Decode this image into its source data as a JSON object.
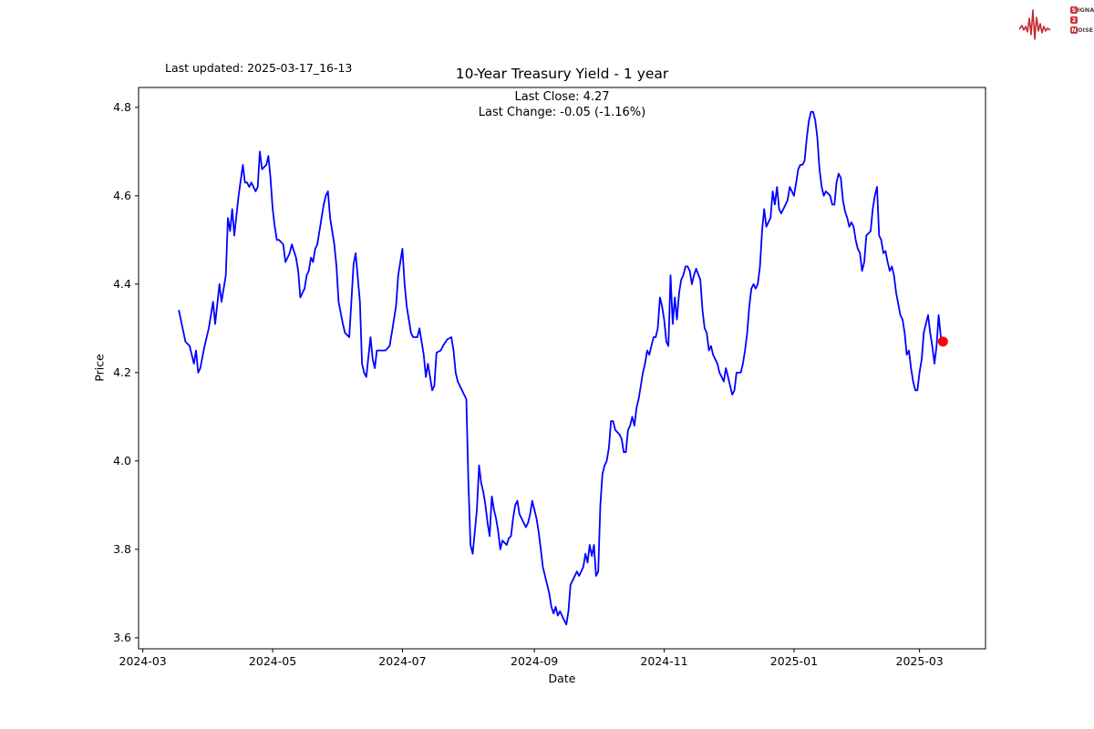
{
  "header": {
    "last_updated": "Last updated: 2025-03-17_16-13",
    "title": "10-Year Treasury Yield - 1 year",
    "subtitle_close": "Last Close: 4.27",
    "subtitle_change": "Last Change: -0.05 (-1.16%)"
  },
  "logo": {
    "badge_letters": [
      "S",
      "2",
      "N"
    ],
    "rest_letters": [
      "IGNAL",
      "",
      "OISE"
    ],
    "badge_color": "#cd3238",
    "wave_color": "#c32a30"
  },
  "chart_data": {
    "type": "line",
    "title": "10-Year Treasury Yield - 1 year",
    "xlabel": "Date",
    "ylabel": "Price",
    "grid": false,
    "legend_position": "none",
    "line_color": "#0000ff",
    "marker_color": "#ff0000",
    "ylim": [
      3.575,
      4.845
    ],
    "xlim": [
      "2024-02-28",
      "2025-04-01"
    ],
    "y_ticks": [
      3.6,
      3.8,
      4.0,
      4.2,
      4.4,
      4.6,
      4.8
    ],
    "x_ticks": [
      {
        "label": "2024-03",
        "date": "2024-03-01"
      },
      {
        "label": "2024-05",
        "date": "2024-05-01"
      },
      {
        "label": "2024-07",
        "date": "2024-07-01"
      },
      {
        "label": "2024-09",
        "date": "2024-09-01"
      },
      {
        "label": "2024-11",
        "date": "2024-11-01"
      },
      {
        "label": "2025-01",
        "date": "2025-01-01"
      },
      {
        "label": "2025-03",
        "date": "2025-03-01"
      }
    ],
    "last_close": 4.27,
    "last_change": -0.05,
    "last_change_pct": -1.16,
    "points": [
      [
        "2024-03-18",
        4.34
      ],
      [
        "2024-03-21",
        4.27
      ],
      [
        "2024-03-23",
        4.26
      ],
      [
        "2024-03-25",
        4.22
      ],
      [
        "2024-03-26",
        4.25
      ],
      [
        "2024-03-27",
        4.2
      ],
      [
        "2024-03-28",
        4.21
      ],
      [
        "2024-03-30",
        4.26
      ],
      [
        "2024-04-01",
        4.3
      ],
      [
        "2024-04-03",
        4.36
      ],
      [
        "2024-04-04",
        4.31
      ],
      [
        "2024-04-06",
        4.4
      ],
      [
        "2024-04-07",
        4.36
      ],
      [
        "2024-04-09",
        4.42
      ],
      [
        "2024-04-10",
        4.55
      ],
      [
        "2024-04-11",
        4.52
      ],
      [
        "2024-04-12",
        4.57
      ],
      [
        "2024-04-13",
        4.51
      ],
      [
        "2024-04-15",
        4.6
      ],
      [
        "2024-04-17",
        4.67
      ],
      [
        "2024-04-18",
        4.63
      ],
      [
        "2024-04-19",
        4.63
      ],
      [
        "2024-04-20",
        4.62
      ],
      [
        "2024-04-21",
        4.63
      ],
      [
        "2024-04-23",
        4.61
      ],
      [
        "2024-04-24",
        4.62
      ],
      [
        "2024-04-25",
        4.7
      ],
      [
        "2024-04-26",
        4.66
      ],
      [
        "2024-04-28",
        4.67
      ],
      [
        "2024-04-29",
        4.69
      ],
      [
        "2024-04-30",
        4.64
      ],
      [
        "2024-05-01",
        4.57
      ],
      [
        "2024-05-02",
        4.53
      ],
      [
        "2024-05-03",
        4.5
      ],
      [
        "2024-05-04",
        4.5
      ],
      [
        "2024-05-06",
        4.49
      ],
      [
        "2024-05-07",
        4.45
      ],
      [
        "2024-05-09",
        4.47
      ],
      [
        "2024-05-10",
        4.49
      ],
      [
        "2024-05-11",
        4.475
      ],
      [
        "2024-05-12",
        4.46
      ],
      [
        "2024-05-13",
        4.43
      ],
      [
        "2024-05-14",
        4.37
      ],
      [
        "2024-05-15",
        4.38
      ],
      [
        "2024-05-16",
        4.39
      ],
      [
        "2024-05-17",
        4.42
      ],
      [
        "2024-05-18",
        4.43
      ],
      [
        "2024-05-19",
        4.46
      ],
      [
        "2024-05-20",
        4.45
      ],
      [
        "2024-05-21",
        4.48
      ],
      [
        "2024-05-22",
        4.49
      ],
      [
        "2024-05-23",
        4.52
      ],
      [
        "2024-05-24",
        4.55
      ],
      [
        "2024-05-25",
        4.58
      ],
      [
        "2024-05-26",
        4.6
      ],
      [
        "2024-05-27",
        4.61
      ],
      [
        "2024-05-28",
        4.55
      ],
      [
        "2024-05-30",
        4.49
      ],
      [
        "2024-05-31",
        4.44
      ],
      [
        "2024-06-01",
        4.36
      ],
      [
        "2024-06-03",
        4.31
      ],
      [
        "2024-06-04",
        4.29
      ],
      [
        "2024-06-06",
        4.28
      ],
      [
        "2024-06-07",
        4.36
      ],
      [
        "2024-06-08",
        4.445
      ],
      [
        "2024-06-09",
        4.47
      ],
      [
        "2024-06-11",
        4.36
      ],
      [
        "2024-06-12",
        4.22
      ],
      [
        "2024-06-13",
        4.2
      ],
      [
        "2024-06-14",
        4.19
      ],
      [
        "2024-06-16",
        4.28
      ],
      [
        "2024-06-17",
        4.23
      ],
      [
        "2024-06-18",
        4.21
      ],
      [
        "2024-06-19",
        4.25
      ],
      [
        "2024-06-21",
        4.25
      ],
      [
        "2024-06-23",
        4.25
      ],
      [
        "2024-06-25",
        4.26
      ],
      [
        "2024-06-26",
        4.29
      ],
      [
        "2024-06-27",
        4.32
      ],
      [
        "2024-06-28",
        4.35
      ],
      [
        "2024-06-29",
        4.42
      ],
      [
        "2024-07-01",
        4.48
      ],
      [
        "2024-07-02",
        4.4
      ],
      [
        "2024-07-03",
        4.35
      ],
      [
        "2024-07-05",
        4.29
      ],
      [
        "2024-07-06",
        4.28
      ],
      [
        "2024-07-08",
        4.28
      ],
      [
        "2024-07-09",
        4.3
      ],
      [
        "2024-07-11",
        4.24
      ],
      [
        "2024-07-12",
        4.19
      ],
      [
        "2024-07-13",
        4.22
      ],
      [
        "2024-07-15",
        4.16
      ],
      [
        "2024-07-16",
        4.17
      ],
      [
        "2024-07-17",
        4.245
      ],
      [
        "2024-07-19",
        4.25
      ],
      [
        "2024-07-20",
        4.26
      ],
      [
        "2024-07-22",
        4.275
      ],
      [
        "2024-07-24",
        4.28
      ],
      [
        "2024-07-25",
        4.25
      ],
      [
        "2024-07-26",
        4.2
      ],
      [
        "2024-07-27",
        4.18
      ],
      [
        "2024-07-29",
        4.16
      ],
      [
        "2024-07-30",
        4.15
      ],
      [
        "2024-07-31",
        4.14
      ],
      [
        "2024-08-01",
        3.95
      ],
      [
        "2024-08-02",
        3.81
      ],
      [
        "2024-08-03",
        3.79
      ],
      [
        "2024-08-05",
        3.89
      ],
      [
        "2024-08-06",
        3.99
      ],
      [
        "2024-08-07",
        3.95
      ],
      [
        "2024-08-08",
        3.93
      ],
      [
        "2024-08-09",
        3.9
      ],
      [
        "2024-08-10",
        3.86
      ],
      [
        "2024-08-11",
        3.83
      ],
      [
        "2024-08-12",
        3.92
      ],
      [
        "2024-08-13",
        3.89
      ],
      [
        "2024-08-14",
        3.87
      ],
      [
        "2024-08-15",
        3.84
      ],
      [
        "2024-08-16",
        3.8
      ],
      [
        "2024-08-17",
        3.82
      ],
      [
        "2024-08-19",
        3.81
      ],
      [
        "2024-08-20",
        3.825
      ],
      [
        "2024-08-21",
        3.83
      ],
      [
        "2024-08-22",
        3.87
      ],
      [
        "2024-08-23",
        3.9
      ],
      [
        "2024-08-24",
        3.91
      ],
      [
        "2024-08-25",
        3.88
      ],
      [
        "2024-08-27",
        3.86
      ],
      [
        "2024-08-28",
        3.85
      ],
      [
        "2024-08-29",
        3.86
      ],
      [
        "2024-08-30",
        3.88
      ],
      [
        "2024-08-31",
        3.91
      ],
      [
        "2024-09-02",
        3.87
      ],
      [
        "2024-09-03",
        3.84
      ],
      [
        "2024-09-04",
        3.8
      ],
      [
        "2024-09-05",
        3.76
      ],
      [
        "2024-09-07",
        3.72
      ],
      [
        "2024-09-08",
        3.7
      ],
      [
        "2024-09-09",
        3.67
      ],
      [
        "2024-09-10",
        3.655
      ],
      [
        "2024-09-11",
        3.67
      ],
      [
        "2024-09-12",
        3.65
      ],
      [
        "2024-09-13",
        3.66
      ],
      [
        "2024-09-14",
        3.65
      ],
      [
        "2024-09-15",
        3.64
      ],
      [
        "2024-09-16",
        3.63
      ],
      [
        "2024-09-17",
        3.66
      ],
      [
        "2024-09-18",
        3.72
      ],
      [
        "2024-09-19",
        3.73
      ],
      [
        "2024-09-21",
        3.75
      ],
      [
        "2024-09-22",
        3.74
      ],
      [
        "2024-09-23",
        3.75
      ],
      [
        "2024-09-24",
        3.76
      ],
      [
        "2024-09-25",
        3.79
      ],
      [
        "2024-09-26",
        3.77
      ],
      [
        "2024-09-27",
        3.81
      ],
      [
        "2024-09-28",
        3.785
      ],
      [
        "2024-09-29",
        3.81
      ],
      [
        "2024-09-30",
        3.74
      ],
      [
        "2024-10-01",
        3.75
      ],
      [
        "2024-10-02",
        3.9
      ],
      [
        "2024-10-03",
        3.97
      ],
      [
        "2024-10-04",
        3.99
      ],
      [
        "2024-10-05",
        4.0
      ],
      [
        "2024-10-06",
        4.03
      ],
      [
        "2024-10-07",
        4.09
      ],
      [
        "2024-10-08",
        4.09
      ],
      [
        "2024-10-09",
        4.07
      ],
      [
        "2024-10-11",
        4.06
      ],
      [
        "2024-10-12",
        4.05
      ],
      [
        "2024-10-13",
        4.02
      ],
      [
        "2024-10-14",
        4.02
      ],
      [
        "2024-10-15",
        4.07
      ],
      [
        "2024-10-16",
        4.08
      ],
      [
        "2024-10-17",
        4.1
      ],
      [
        "2024-10-18",
        4.08
      ],
      [
        "2024-10-19",
        4.12
      ],
      [
        "2024-10-20",
        4.14
      ],
      [
        "2024-10-21",
        4.17
      ],
      [
        "2024-10-22",
        4.2
      ],
      [
        "2024-10-23",
        4.22
      ],
      [
        "2024-10-24",
        4.25
      ],
      [
        "2024-10-25",
        4.24
      ],
      [
        "2024-10-26",
        4.26
      ],
      [
        "2024-10-27",
        4.28
      ],
      [
        "2024-10-28",
        4.28
      ],
      [
        "2024-10-29",
        4.3
      ],
      [
        "2024-10-30",
        4.37
      ],
      [
        "2024-10-31",
        4.35
      ],
      [
        "2024-11-01",
        4.32
      ],
      [
        "2024-11-02",
        4.27
      ],
      [
        "2024-11-03",
        4.26
      ],
      [
        "2024-11-04",
        4.42
      ],
      [
        "2024-11-05",
        4.31
      ],
      [
        "2024-11-06",
        4.37
      ],
      [
        "2024-11-07",
        4.32
      ],
      [
        "2024-11-08",
        4.38
      ],
      [
        "2024-11-09",
        4.41
      ],
      [
        "2024-11-10",
        4.42
      ],
      [
        "2024-11-11",
        4.44
      ],
      [
        "2024-11-12",
        4.44
      ],
      [
        "2024-11-13",
        4.43
      ],
      [
        "2024-11-14",
        4.4
      ],
      [
        "2024-11-15",
        4.42
      ],
      [
        "2024-11-16",
        4.435
      ],
      [
        "2024-11-18",
        4.41
      ],
      [
        "2024-11-19",
        4.34
      ],
      [
        "2024-11-20",
        4.3
      ],
      [
        "2024-11-21",
        4.29
      ],
      [
        "2024-11-22",
        4.25
      ],
      [
        "2024-11-23",
        4.26
      ],
      [
        "2024-11-24",
        4.24
      ],
      [
        "2024-11-25",
        4.23
      ],
      [
        "2024-11-26",
        4.22
      ],
      [
        "2024-11-27",
        4.2
      ],
      [
        "2024-11-28",
        4.19
      ],
      [
        "2024-11-29",
        4.18
      ],
      [
        "2024-11-30",
        4.21
      ],
      [
        "2024-12-01",
        4.19
      ],
      [
        "2024-12-02",
        4.17
      ],
      [
        "2024-12-03",
        4.15
      ],
      [
        "2024-12-04",
        4.16
      ],
      [
        "2024-12-05",
        4.2
      ],
      [
        "2024-12-07",
        4.2
      ],
      [
        "2024-12-08",
        4.22
      ],
      [
        "2024-12-09",
        4.25
      ],
      [
        "2024-12-10",
        4.29
      ],
      [
        "2024-12-11",
        4.35
      ],
      [
        "2024-12-12",
        4.39
      ],
      [
        "2024-12-13",
        4.4
      ],
      [
        "2024-12-14",
        4.39
      ],
      [
        "2024-12-15",
        4.4
      ],
      [
        "2024-12-16",
        4.44
      ],
      [
        "2024-12-17",
        4.52
      ],
      [
        "2024-12-18",
        4.57
      ],
      [
        "2024-12-19",
        4.53
      ],
      [
        "2024-12-20",
        4.54
      ],
      [
        "2024-12-21",
        4.55
      ],
      [
        "2024-12-22",
        4.61
      ],
      [
        "2024-12-23",
        4.58
      ],
      [
        "2024-12-24",
        4.62
      ],
      [
        "2024-12-25",
        4.57
      ],
      [
        "2024-12-26",
        4.56
      ],
      [
        "2024-12-27",
        4.57
      ],
      [
        "2024-12-29",
        4.59
      ],
      [
        "2024-12-30",
        4.62
      ],
      [
        "2024-12-31",
        4.61
      ],
      [
        "2025-01-01",
        4.6
      ],
      [
        "2025-01-02",
        4.63
      ],
      [
        "2025-01-03",
        4.66
      ],
      [
        "2025-01-04",
        4.67
      ],
      [
        "2025-01-05",
        4.67
      ],
      [
        "2025-01-06",
        4.68
      ],
      [
        "2025-01-07",
        4.73
      ],
      [
        "2025-01-08",
        4.77
      ],
      [
        "2025-01-09",
        4.79
      ],
      [
        "2025-01-10",
        4.79
      ],
      [
        "2025-01-11",
        4.77
      ],
      [
        "2025-01-12",
        4.73
      ],
      [
        "2025-01-13",
        4.66
      ],
      [
        "2025-01-14",
        4.62
      ],
      [
        "2025-01-15",
        4.6
      ],
      [
        "2025-01-16",
        4.61
      ],
      [
        "2025-01-18",
        4.6
      ],
      [
        "2025-01-19",
        4.58
      ],
      [
        "2025-01-20",
        4.58
      ],
      [
        "2025-01-21",
        4.63
      ],
      [
        "2025-01-22",
        4.65
      ],
      [
        "2025-01-23",
        4.64
      ],
      [
        "2025-01-24",
        4.59
      ],
      [
        "2025-01-25",
        4.565
      ],
      [
        "2025-01-26",
        4.55
      ],
      [
        "2025-01-27",
        4.53
      ],
      [
        "2025-01-28",
        4.54
      ],
      [
        "2025-01-29",
        4.53
      ],
      [
        "2025-01-30",
        4.5
      ],
      [
        "2025-01-31",
        4.48
      ],
      [
        "2025-02-01",
        4.47
      ],
      [
        "2025-02-02",
        4.43
      ],
      [
        "2025-02-03",
        4.45
      ],
      [
        "2025-02-04",
        4.51
      ],
      [
        "2025-02-06",
        4.52
      ],
      [
        "2025-02-07",
        4.57
      ],
      [
        "2025-02-08",
        4.6
      ],
      [
        "2025-02-09",
        4.62
      ],
      [
        "2025-02-10",
        4.51
      ],
      [
        "2025-02-11",
        4.5
      ],
      [
        "2025-02-12",
        4.47
      ],
      [
        "2025-02-13",
        4.475
      ],
      [
        "2025-02-14",
        4.45
      ],
      [
        "2025-02-15",
        4.43
      ],
      [
        "2025-02-16",
        4.44
      ],
      [
        "2025-02-17",
        4.42
      ],
      [
        "2025-02-18",
        4.38
      ],
      [
        "2025-02-20",
        4.33
      ],
      [
        "2025-02-21",
        4.32
      ],
      [
        "2025-02-22",
        4.29
      ],
      [
        "2025-02-23",
        4.24
      ],
      [
        "2025-02-24",
        4.25
      ],
      [
        "2025-02-25",
        4.21
      ],
      [
        "2025-02-26",
        4.18
      ],
      [
        "2025-02-27",
        4.16
      ],
      [
        "2025-02-28",
        4.16
      ],
      [
        "2025-03-01",
        4.2
      ],
      [
        "2025-03-02",
        4.23
      ],
      [
        "2025-03-03",
        4.29
      ],
      [
        "2025-03-04",
        4.31
      ],
      [
        "2025-03-05",
        4.33
      ],
      [
        "2025-03-06",
        4.29
      ],
      [
        "2025-03-07",
        4.26
      ],
      [
        "2025-03-08",
        4.22
      ],
      [
        "2025-03-09",
        4.26
      ],
      [
        "2025-03-10",
        4.33
      ],
      [
        "2025-03-11",
        4.28
      ],
      [
        "2025-03-12",
        4.27
      ]
    ]
  }
}
